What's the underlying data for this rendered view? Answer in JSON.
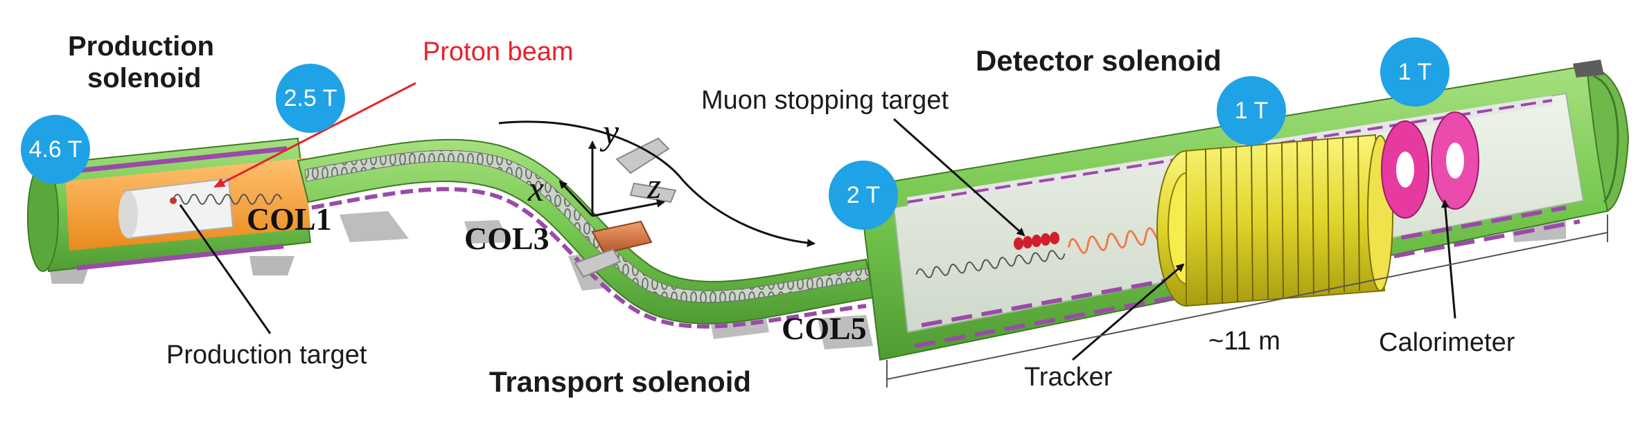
{
  "labels": {
    "production_solenoid_line1": "Production",
    "production_solenoid_line2": "solenoid",
    "proton_beam": "Proton beam",
    "detector_solenoid": "Detector solenoid",
    "muon_stopping_target": "Muon stopping target",
    "production_target": "Production target",
    "transport_solenoid": "Transport solenoid",
    "tracker": "Tracker",
    "length": "~11 m",
    "calorimeter": "Calorimeter"
  },
  "collimators": {
    "col1": "COL1",
    "col3": "COL3",
    "col5": "COL5"
  },
  "axes": {
    "x": "x",
    "y": "y",
    "z": "z"
  },
  "fields": {
    "ps_high": "4.6 T",
    "ps_low": "2.5 T",
    "ds_entrance": "2 T",
    "ds_tracker": "1 T",
    "ds_calorimeter": "1 T"
  },
  "colors": {
    "field_bubble": "#1fa2e6",
    "proton_beam": "#e8202a",
    "cryostat_green": "#7ccb57",
    "production_orange": "#f5a13a",
    "tracker_yellow": "#e8e23a",
    "calorimeter_magenta": "#e63aa0",
    "coil_purple": "#9a4aa8"
  }
}
